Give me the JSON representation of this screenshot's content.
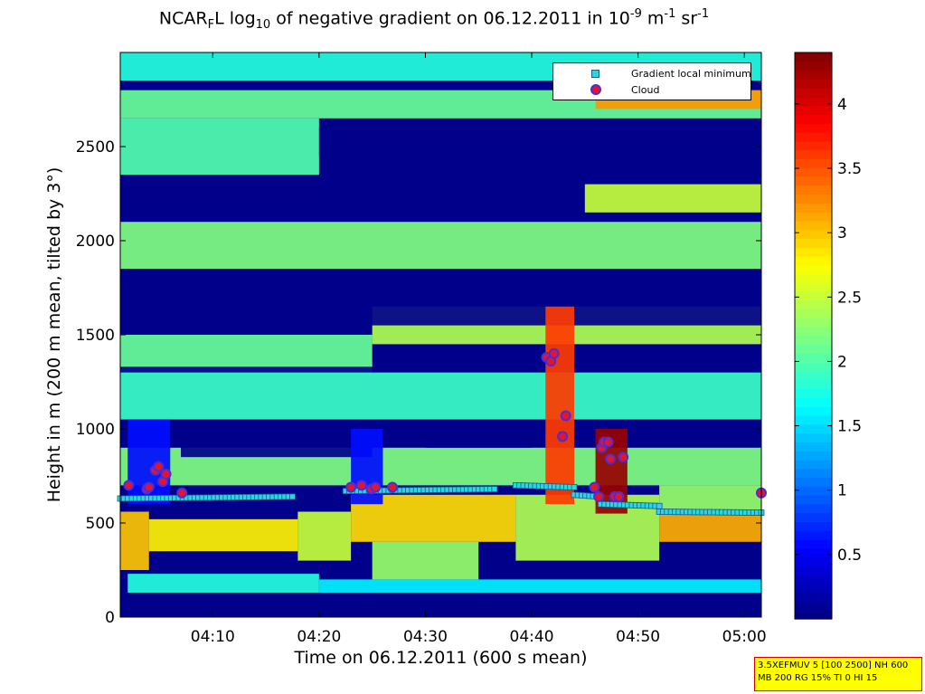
{
  "title": {
    "part1": "NCAR",
    "sub1": "F",
    "part2": "L log",
    "sub2": "10",
    "part3": " of negative gradient on 06.12.2011 in 10",
    "sup1": "-9",
    "part4": " m",
    "sup2": "-1",
    "part5": " sr",
    "sup3": "-1"
  },
  "axes": {
    "ylabel": "Height in m (200 m mean, tilted by 3°)",
    "xlabel": "Time on 06.12.2011 (600 s mean)"
  },
  "legend": {
    "item1": "Gradient local minimum",
    "item2": "Cloud"
  },
  "infobox": {
    "line1": "3.5XEFMUV 5 [100 2500] NH 600",
    "line2": "MB 200 RG 15% TI 0 HI 15"
  },
  "colors": {
    "marker_fill": "#29d7e3",
    "cloud_fill": "#e3152c",
    "cloud_edge": "#4a2cd9",
    "infobox_bg": "#ffff00"
  },
  "chart_data": {
    "type": "heatmap",
    "colormap": "jet",
    "x_range_minutes": [
      1.3,
      61.6
    ],
    "x_ticks": [
      "04:10",
      "04:20",
      "04:30",
      "04:40",
      "04:50",
      "05:00"
    ],
    "y_range": [
      0,
      3000
    ],
    "y_ticks": [
      "0",
      "500",
      "1000",
      "1500",
      "2000",
      "2500"
    ],
    "colorbar_range": [
      0,
      4.4
    ],
    "colorbar_ticks": [
      "0.5",
      "1",
      "1.5",
      "2",
      "2.5",
      "3",
      "3.5",
      "4"
    ],
    "bands": [
      {
        "x0": 1.3,
        "x1": 61.6,
        "y0": 0,
        "y1": 130,
        "v": 0.05
      },
      {
        "x0": 2,
        "x1": 20,
        "y0": 130,
        "y1": 230,
        "v": 1.8
      },
      {
        "x0": 20,
        "x1": 61.6,
        "y0": 130,
        "y1": 200,
        "v": 1.6
      },
      {
        "x0": 1.3,
        "x1": 4,
        "y0": 250,
        "y1": 560,
        "v": 3.0
      },
      {
        "x0": 4,
        "x1": 18,
        "y0": 350,
        "y1": 520,
        "v": 2.8
      },
      {
        "x0": 18,
        "x1": 23,
        "y0": 300,
        "y1": 560,
        "v": 2.5
      },
      {
        "x0": 23,
        "x1": 38.5,
        "y0": 400,
        "y1": 650,
        "v": 2.9
      },
      {
        "x0": 25,
        "x1": 35,
        "y0": 200,
        "y1": 400,
        "v": 2.3
      },
      {
        "x0": 38.5,
        "x1": 52,
        "y0": 300,
        "y1": 650,
        "v": 2.4
      },
      {
        "x0": 52,
        "x1": 61.6,
        "y0": 400,
        "y1": 560,
        "v": 3.1
      },
      {
        "x0": 52,
        "x1": 61.6,
        "y0": 560,
        "y1": 700,
        "v": 2.3
      },
      {
        "x0": 1.3,
        "x1": 61.6,
        "y0": 700,
        "y1": 900,
        "v": 2.2
      },
      {
        "x0": 7,
        "x1": 25,
        "y0": 850,
        "y1": 1050,
        "v": 0.05
      },
      {
        "x0": 30,
        "x1": 40,
        "y0": 900,
        "y1": 1100,
        "v": 0.05
      },
      {
        "x0": 52,
        "x1": 61.6,
        "y0": 950,
        "y1": 1150,
        "v": 0.05
      },
      {
        "x0": 1.3,
        "x1": 61.6,
        "y0": 1050,
        "y1": 1300,
        "v": 1.9
      },
      {
        "x0": 1.3,
        "x1": 25,
        "y0": 1300,
        "y1": 1500,
        "v": 2.1
      },
      {
        "x0": 25,
        "x1": 61.6,
        "y0": 1450,
        "y1": 1650,
        "v": 2.4
      },
      {
        "x0": 10,
        "x1": 50,
        "y0": 1700,
        "y1": 1800,
        "v": 0.05
      },
      {
        "x0": 1.3,
        "x1": 61.6,
        "y0": 1550,
        "y1": 1700,
        "v": 0.05
      },
      {
        "x0": 1.3,
        "x1": 61.6,
        "y0": 1850,
        "y1": 2100,
        "v": 2.2
      },
      {
        "x0": 20,
        "x1": 45,
        "y0": 2200,
        "y1": 2350,
        "v": 0.05
      },
      {
        "x0": 45,
        "x1": 61.6,
        "y0": 2150,
        "y1": 2300,
        "v": 2.5
      },
      {
        "x0": 1.3,
        "x1": 20,
        "y0": 2350,
        "y1": 2650,
        "v": 2.0
      },
      {
        "x0": 20,
        "x1": 61.6,
        "y0": 2450,
        "y1": 2600,
        "v": 0.05
      },
      {
        "x0": 1.3,
        "x1": 61.6,
        "y0": 2650,
        "y1": 2800,
        "v": 2.1
      },
      {
        "x0": 46,
        "x1": 61.6,
        "y0": 2700,
        "y1": 2800,
        "v": 3.2
      },
      {
        "x0": 1.3,
        "x1": 61.6,
        "y0": 2850,
        "y1": 3000,
        "v": 1.8
      },
      {
        "x0": 1.3,
        "x1": 61.6,
        "y0": 2800,
        "y1": 2850,
        "v": 0.05
      },
      {
        "x0": 1.3,
        "x1": 61.6,
        "y0": 1300,
        "y1": 1330,
        "v": 0.05
      },
      {
        "x0": 41.3,
        "x1": 44,
        "y0": 600,
        "y1": 1650,
        "v": 3.6
      },
      {
        "x0": 46,
        "x1": 49,
        "y0": 550,
        "y1": 1000,
        "v": 4.3
      },
      {
        "x0": 2,
        "x1": 6,
        "y0": 600,
        "y1": 1050,
        "v": 0.6
      },
      {
        "x0": 23,
        "x1": 26,
        "y0": 600,
        "y1": 1000,
        "v": 0.6
      }
    ],
    "series": [
      {
        "name": "Gradient local minimum",
        "segments": [
          {
            "x0": 1.3,
            "x1": 17.5,
            "y": [
              630,
              640
            ]
          },
          {
            "x0": 22.5,
            "x1": 36.5,
            "y": [
              670,
              680
            ]
          },
          {
            "x0": 38.5,
            "x1": 44,
            "y": [
              700,
              690
            ]
          },
          {
            "x0": 44,
            "x1": 46.5,
            "y": [
              650,
              640
            ]
          },
          {
            "x0": 46.5,
            "x1": 52,
            "y": [
              600,
              590
            ]
          },
          {
            "x0": 52,
            "x1": 61.6,
            "y": [
              560,
              555
            ]
          }
        ]
      },
      {
        "name": "Cloud",
        "points": [
          [
            2.1,
            700
          ],
          [
            3.8,
            680
          ],
          [
            4.0,
            690
          ],
          [
            4.6,
            780
          ],
          [
            4.9,
            800
          ],
          [
            5.3,
            720
          ],
          [
            5.6,
            760
          ],
          [
            7.1,
            660
          ],
          [
            23.0,
            690
          ],
          [
            24.0,
            700
          ],
          [
            24.9,
            680
          ],
          [
            25.3,
            690
          ],
          [
            26.9,
            690
          ],
          [
            41.4,
            1380
          ],
          [
            41.8,
            1360
          ],
          [
            42.1,
            1400
          ],
          [
            42.9,
            960
          ],
          [
            43.2,
            1070
          ],
          [
            45.9,
            690
          ],
          [
            46.3,
            640
          ],
          [
            46.6,
            900
          ],
          [
            46.8,
            930
          ],
          [
            47.2,
            930
          ],
          [
            47.4,
            840
          ],
          [
            47.8,
            640
          ],
          [
            48.2,
            640
          ],
          [
            48.6,
            850
          ],
          [
            61.6,
            660
          ]
        ]
      }
    ]
  }
}
